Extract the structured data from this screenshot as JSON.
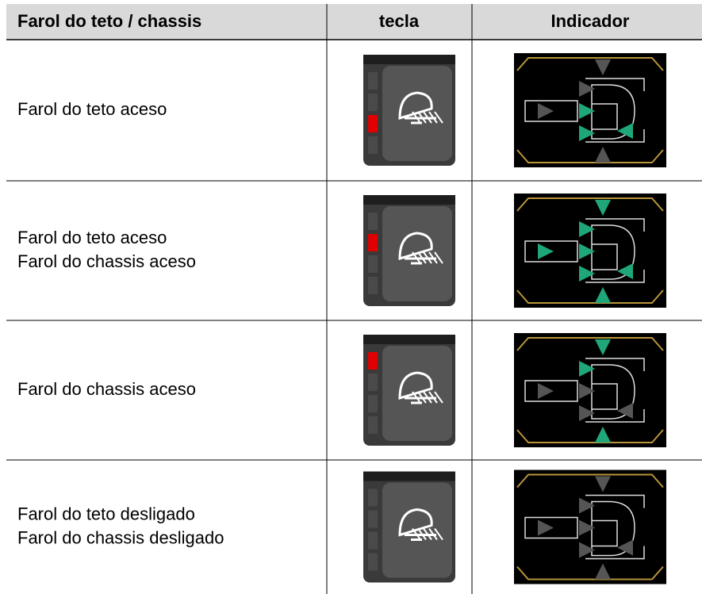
{
  "table": {
    "header": [
      "Farol do teto / chassis",
      "tecla",
      "Indicador"
    ],
    "rows": [
      {
        "lines": [
          "Farol do teto aceso"
        ]
      },
      {
        "lines": [
          "Farol do teto aceso",
          "Farol do chassis aceso"
        ]
      },
      {
        "lines": [
          "Farol do chassis aceso"
        ]
      },
      {
        "lines": [
          "Farol do teto desligado",
          "Farol do chassis desligado"
        ]
      }
    ]
  }
}
